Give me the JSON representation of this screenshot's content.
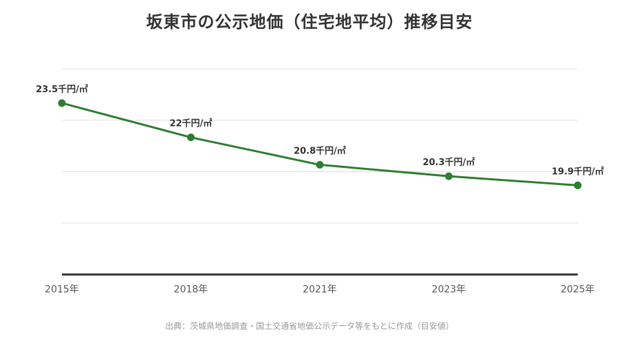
{
  "colors": {
    "line": "#2e7d32",
    "grid": "#dddddd",
    "axis": "#333333"
  },
  "chart_data": {
    "type": "line",
    "title": "坂東市の公示地価（住宅地平均）推移目安",
    "categories": [
      "2015年",
      "2018年",
      "2021年",
      "2023年",
      "2025年"
    ],
    "x": [
      "2015年",
      "2018年",
      "2021年",
      "2023年",
      "2025年"
    ],
    "series": [
      {
        "values": [
          23.5,
          22,
          20.8,
          20.3,
          19.9
        ],
        "labels": [
          "23.5千円/㎡",
          "22千円/㎡",
          "20.8千円/㎡",
          "20.3千円/㎡",
          "19.9千円/㎡"
        ]
      }
    ],
    "ylim": [
      16,
      25
    ],
    "yticks": [
      16,
      17.75,
      19.5,
      21.25,
      23
    ],
    "grid": true,
    "legend": "none",
    "xlabel": "",
    "ylabel": "",
    "source": "出典：茨城県地価調査・国土交通省地価公示データ等をもとに作成（目安値）"
  }
}
